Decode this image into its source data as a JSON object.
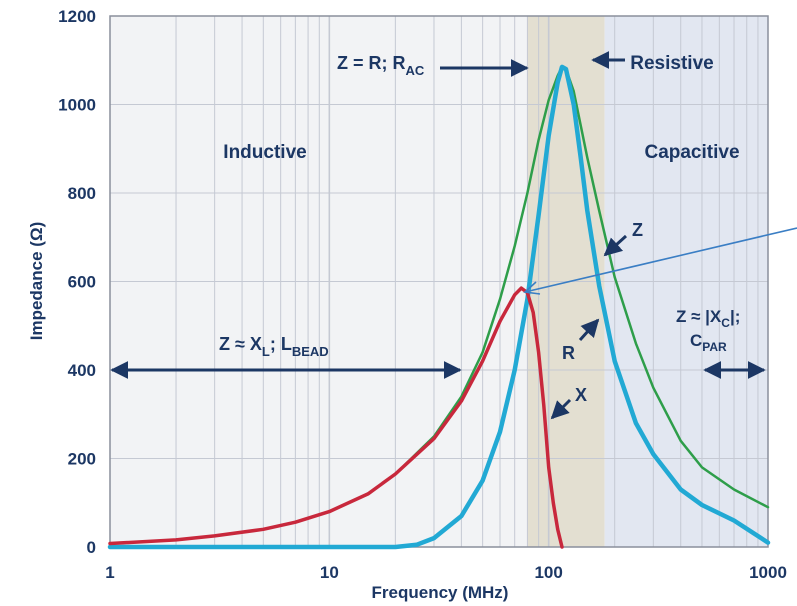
{
  "chart_data": {
    "type": "line",
    "title": "",
    "xlabel": "Frequency (MHz)",
    "ylabel": "Impedance (Ω)",
    "x_scale": "log",
    "xlim": [
      1,
      1000
    ],
    "ylim": [
      0,
      1200
    ],
    "x_ticks": [
      "1",
      "10",
      "100",
      "1000"
    ],
    "y_ticks": [
      "0",
      "200",
      "400",
      "600",
      "800",
      "1000",
      "1200"
    ],
    "grid": true,
    "series": [
      {
        "name": "Z",
        "color": "#2e9e4a",
        "x": [
          1,
          2,
          3,
          5,
          7,
          10,
          15,
          20,
          30,
          40,
          50,
          60,
          70,
          80,
          90,
          100,
          110,
          115,
          120,
          130,
          150,
          170,
          200,
          250,
          300,
          400,
          500,
          700,
          1000
        ],
        "y": [
          8,
          16,
          25,
          40,
          56,
          80,
          120,
          165,
          250,
          340,
          440,
          560,
          680,
          800,
          920,
          1010,
          1065,
          1085,
          1080,
          1030,
          880,
          760,
          610,
          460,
          360,
          240,
          180,
          130,
          90
        ]
      },
      {
        "name": "R",
        "color": "#22a9d4",
        "x": [
          1,
          10,
          20,
          25,
          30,
          40,
          50,
          60,
          70,
          80,
          90,
          100,
          110,
          115,
          120,
          130,
          140,
          150,
          170,
          200,
          250,
          300,
          400,
          500,
          700,
          1000
        ],
        "y": [
          0,
          0,
          0,
          5,
          20,
          70,
          150,
          260,
          400,
          560,
          750,
          930,
          1050,
          1085,
          1080,
          1000,
          880,
          760,
          590,
          420,
          280,
          210,
          130,
          95,
          60,
          10
        ]
      },
      {
        "name": "X",
        "color": "#c8283c",
        "x": [
          1,
          2,
          3,
          5,
          7,
          10,
          15,
          20,
          30,
          40,
          50,
          60,
          70,
          75,
          80,
          85,
          90,
          95,
          100,
          105,
          110,
          115
        ],
        "y": [
          8,
          16,
          25,
          40,
          56,
          80,
          120,
          165,
          245,
          330,
          420,
          510,
          570,
          585,
          575,
          530,
          440,
          320,
          180,
          100,
          40,
          0
        ]
      }
    ],
    "regions": [
      {
        "label": "Inductive",
        "x_range": [
          1,
          80
        ],
        "color": "#f2f3f5"
      },
      {
        "label": "Resistive",
        "x_range": [
          80,
          180
        ],
        "color": "#e3dfd1"
      },
      {
        "label": "Capacitive",
        "x_range": [
          180,
          1000
        ],
        "color": "#e2e7f1"
      }
    ],
    "annotations": {
      "inductive": "Inductive",
      "resistive": "Resistive",
      "capacitive": "Capacitive",
      "z_equals_r": "Z = R; R",
      "z_equals_r_sub": "AC",
      "z_xl": "Z ≈ X",
      "z_xl_sub1": "L",
      "z_xl_mid": "; L",
      "z_xl_sub2": "BEAD",
      "z_xc_line1": "Z ≈ |X",
      "z_xc_sub": "C",
      "z_xc_end": "|;",
      "cpar": "C",
      "cpar_sub": "PAR",
      "label_z": "Z",
      "label_r": "R",
      "label_x": "X"
    },
    "colors": {
      "axis_text": "#1c3764",
      "arrow": "#1c3764",
      "grid": "#c5c9d3",
      "pointer_line": "#3a7ec4"
    }
  }
}
